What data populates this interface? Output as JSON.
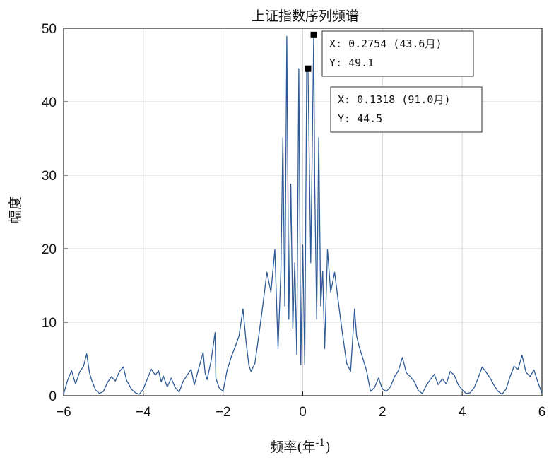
{
  "chart_data": {
    "type": "line",
    "title": "上证指数序列频谱",
    "xlabel": "频率(年",
    "xlabel_sup": "-1",
    "xlabel_close": ")",
    "ylabel": "幅度",
    "xlim": [
      -6,
      6
    ],
    "ylim": [
      0,
      50
    ],
    "xticks": [
      -6,
      -4,
      -2,
      0,
      2,
      4,
      6
    ],
    "xtick_labels": [
      "−6",
      "−4",
      "−2",
      "0",
      "2",
      "4",
      "6"
    ],
    "yticks": [
      0,
      10,
      20,
      30,
      40,
      50
    ],
    "ytick_labels": [
      "0",
      "10",
      "20",
      "30",
      "40",
      "50"
    ],
    "grid": true,
    "line_color": "#2e5a96",
    "series": [
      {
        "x": [
          -6.0,
          -5.9,
          -5.8,
          -5.7,
          -5.6,
          -5.5,
          -5.42,
          -5.35,
          -5.3,
          -5.2,
          -5.1,
          -5.0,
          -4.9,
          -4.8,
          -4.7,
          -4.6,
          -4.5,
          -4.42,
          -4.35,
          -4.3,
          -4.2,
          -4.1,
          -4.0,
          -3.9,
          -3.8,
          -3.7,
          -3.62,
          -3.55,
          -3.5,
          -3.4,
          -3.3,
          -3.2,
          -3.1,
          -3.0,
          -2.9,
          -2.8,
          -2.72,
          -2.6,
          -2.5,
          -2.45,
          -2.4,
          -2.3,
          -2.2,
          -2.18,
          -2.1,
          -2.0,
          -1.9,
          -1.8,
          -1.7,
          -1.6,
          -1.5,
          -1.42,
          -1.35,
          -1.3,
          -1.2,
          -1.1,
          -1.0,
          -0.9,
          -0.8,
          -0.7,
          -0.62,
          -0.55,
          -0.5,
          -0.45,
          -0.4,
          -0.35,
          -0.3,
          -0.25,
          -0.2,
          -0.15,
          -0.1,
          -0.05,
          0.0,
          0.05,
          0.1,
          0.1318,
          0.2,
          0.2754,
          0.3,
          0.35,
          0.4,
          0.45,
          0.5,
          0.55,
          0.62,
          0.7,
          0.8,
          0.9,
          1.0,
          1.1,
          1.2,
          1.3,
          1.35,
          1.42,
          1.5,
          1.6,
          1.7,
          1.8,
          1.9,
          2.0,
          2.1,
          2.2,
          2.3,
          2.4,
          2.5,
          2.6,
          2.7,
          2.8,
          2.9,
          3.0,
          3.1,
          3.2,
          3.3,
          3.4,
          3.5,
          3.6,
          3.7,
          3.8,
          3.9,
          4.0,
          4.1,
          4.2,
          4.3,
          4.4,
          4.5,
          4.6,
          4.7,
          4.8,
          4.9,
          5.0,
          5.1,
          5.2,
          5.3,
          5.4,
          5.5,
          5.6,
          5.7,
          5.8,
          5.9,
          6.0
        ],
        "y": [
          0.2,
          2.1,
          3.4,
          1.6,
          3.2,
          4.0,
          5.7,
          3.1,
          2.2,
          0.8,
          0.3,
          0.6,
          1.8,
          2.6,
          2.0,
          3.3,
          3.9,
          2.1,
          1.4,
          0.9,
          0.4,
          0.2,
          0.9,
          2.3,
          3.6,
          2.8,
          3.4,
          1.9,
          2.7,
          1.2,
          2.4,
          1.1,
          0.5,
          2.0,
          2.8,
          3.6,
          1.5,
          3.9,
          5.9,
          3.1,
          2.2,
          4.7,
          8.6,
          2.4,
          1.1,
          0.6,
          3.4,
          5.2,
          6.6,
          8.1,
          11.8,
          7.2,
          4.1,
          3.3,
          4.4,
          8.3,
          12.4,
          16.8,
          14.1,
          19.9,
          6.4,
          16.9,
          35.1,
          12.2,
          48.9,
          10.4,
          28.8,
          9.2,
          18.1,
          5.6,
          44.5,
          4.2,
          20.5,
          4.2,
          44.5,
          44.5,
          18.1,
          49.1,
          28.8,
          10.4,
          35.1,
          12.2,
          16.9,
          6.4,
          19.9,
          14.1,
          16.8,
          12.4,
          8.3,
          4.4,
          3.3,
          11.8,
          8.1,
          6.6,
          5.2,
          3.4,
          0.6,
          1.1,
          2.4,
          0.9,
          0.6,
          1.2,
          2.6,
          3.4,
          5.2,
          3.1,
          2.6,
          1.9,
          0.7,
          0.3,
          1.4,
          2.2,
          2.9,
          1.5,
          2.3,
          1.6,
          3.3,
          2.8,
          1.5,
          0.8,
          0.3,
          0.4,
          1.1,
          2.4,
          3.9,
          3.2,
          2.4,
          1.4,
          0.6,
          0.2,
          0.9,
          2.6,
          4.0,
          3.6,
          5.5,
          3.2,
          2.6,
          3.5,
          1.8,
          0.3
        ]
      }
    ],
    "datatips": [
      {
        "x": 0.2754,
        "y": 49.1,
        "x_text": "X: 0.2754 (43.6月)",
        "y_text": "Y: 49.1"
      },
      {
        "x": 0.1318,
        "y": 44.5,
        "x_text": "X: 0.1318 (91.0月)",
        "y_text": "Y: 44.5"
      }
    ]
  }
}
